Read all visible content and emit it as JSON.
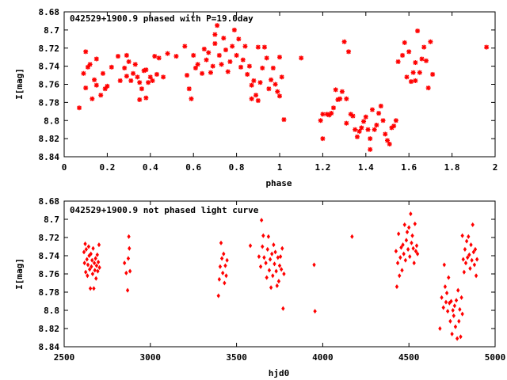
{
  "chart_data": [
    {
      "type": "scatter",
      "title": "042529+1900.9 phased with P=19.0day",
      "xlabel": "phase",
      "ylabel": "I[mag]",
      "xlim": [
        0,
        2
      ],
      "ylim": [
        8.84,
        8.68
      ],
      "y_inverted": true,
      "grid": false,
      "xticks": [
        "0",
        "0.2",
        "0.4",
        "0.6",
        "0.8",
        "1",
        "1.2",
        "1.4",
        "1.6",
        "1.8",
        "2"
      ],
      "yticks": [
        "8.68",
        "8.7",
        "8.72",
        "8.74",
        "8.76",
        "8.78",
        "8.8",
        "8.82",
        "8.84"
      ],
      "marker": "star",
      "color": "#ff0000",
      "points": [
        [
          0.07,
          8.786
        ],
        [
          0.09,
          8.748
        ],
        [
          0.1,
          8.764
        ],
        [
          0.1,
          8.724
        ],
        [
          0.11,
          8.741
        ],
        [
          0.12,
          8.738
        ],
        [
          0.13,
          8.776
        ],
        [
          0.14,
          8.755
        ],
        [
          0.15,
          8.732
        ],
        [
          0.15,
          8.761
        ],
        [
          0.17,
          8.772
        ],
        [
          0.18,
          8.748
        ],
        [
          0.19,
          8.765
        ],
        [
          0.2,
          8.762
        ],
        [
          0.22,
          8.741
        ],
        [
          0.25,
          8.729
        ],
        [
          0.26,
          8.756
        ],
        [
          0.28,
          8.742
        ],
        [
          0.29,
          8.728
        ],
        [
          0.29,
          8.751
        ],
        [
          0.3,
          8.735
        ],
        [
          0.31,
          8.756
        ],
        [
          0.32,
          8.748
        ],
        [
          0.33,
          8.738
        ],
        [
          0.34,
          8.752
        ],
        [
          0.35,
          8.758
        ],
        [
          0.35,
          8.777
        ],
        [
          0.36,
          8.765
        ],
        [
          0.37,
          8.745
        ],
        [
          0.38,
          8.744
        ],
        [
          0.38,
          8.775
        ],
        [
          0.39,
          8.758
        ],
        [
          0.4,
          8.752
        ],
        [
          0.41,
          8.756
        ],
        [
          0.42,
          8.729
        ],
        [
          0.43,
          8.749
        ],
        [
          0.44,
          8.731
        ],
        [
          0.46,
          8.752
        ],
        [
          0.48,
          8.726
        ],
        [
          0.52,
          8.729
        ],
        [
          0.56,
          8.718
        ],
        [
          0.57,
          8.75
        ],
        [
          0.58,
          8.765
        ],
        [
          0.59,
          8.776
        ],
        [
          0.6,
          8.728
        ],
        [
          0.61,
          8.742
        ],
        [
          0.62,
          8.738
        ],
        [
          0.64,
          8.748
        ],
        [
          0.65,
          8.721
        ],
        [
          0.66,
          8.733
        ],
        [
          0.67,
          8.725
        ],
        [
          0.68,
          8.747
        ],
        [
          0.69,
          8.74
        ],
        [
          0.7,
          8.715
        ],
        [
          0.7,
          8.705
        ],
        [
          0.71,
          8.695
        ],
        [
          0.72,
          8.728
        ],
        [
          0.73,
          8.738
        ],
        [
          0.74,
          8.709
        ],
        [
          0.75,
          8.722
        ],
        [
          0.76,
          8.746
        ],
        [
          0.77,
          8.735
        ],
        [
          0.78,
          8.718
        ],
        [
          0.79,
          8.7
        ],
        [
          0.8,
          8.728
        ],
        [
          0.81,
          8.71
        ],
        [
          0.82,
          8.741
        ],
        [
          0.83,
          8.733
        ],
        [
          0.84,
          8.718
        ],
        [
          0.85,
          8.749
        ],
        [
          0.86,
          8.74
        ],
        [
          0.87,
          8.761
        ],
        [
          0.87,
          8.776
        ],
        [
          0.88,
          8.756
        ],
        [
          0.89,
          8.772
        ],
        [
          0.9,
          8.719
        ],
        [
          0.9,
          8.778
        ],
        [
          0.91,
          8.758
        ],
        [
          0.92,
          8.742
        ],
        [
          0.93,
          8.719
        ],
        [
          0.94,
          8.731
        ],
        [
          0.95,
          8.765
        ],
        [
          0.96,
          8.755
        ],
        [
          0.97,
          8.742
        ],
        [
          0.98,
          8.76
        ],
        [
          0.99,
          8.768
        ],
        [
          1.0,
          8.773
        ],
        [
          1.0,
          8.73
        ],
        [
          1.01,
          8.752
        ],
        [
          1.02,
          8.799
        ],
        [
          1.1,
          8.731
        ],
        [
          1.19,
          8.8
        ],
        [
          1.2,
          8.793
        ],
        [
          1.2,
          8.82
        ],
        [
          1.22,
          8.793
        ],
        [
          1.23,
          8.794
        ],
        [
          1.24,
          8.792
        ],
        [
          1.25,
          8.786
        ],
        [
          1.26,
          8.766
        ],
        [
          1.27,
          8.777
        ],
        [
          1.28,
          8.776
        ],
        [
          1.29,
          8.768
        ],
        [
          1.3,
          8.713
        ],
        [
          1.31,
          8.776
        ],
        [
          1.31,
          8.803
        ],
        [
          1.32,
          8.724
        ],
        [
          1.33,
          8.793
        ],
        [
          1.34,
          8.795
        ],
        [
          1.35,
          8.81
        ],
        [
          1.36,
          8.818
        ],
        [
          1.37,
          8.812
        ],
        [
          1.38,
          8.808
        ],
        [
          1.39,
          8.801
        ],
        [
          1.4,
          8.796
        ],
        [
          1.41,
          8.81
        ],
        [
          1.42,
          8.832
        ],
        [
          1.42,
          8.82
        ],
        [
          1.43,
          8.788
        ],
        [
          1.44,
          8.81
        ],
        [
          1.45,
          8.805
        ],
        [
          1.46,
          8.792
        ],
        [
          1.47,
          8.784
        ],
        [
          1.48,
          8.8
        ],
        [
          1.49,
          8.815
        ],
        [
          1.5,
          8.822
        ],
        [
          1.51,
          8.826
        ],
        [
          1.52,
          8.808
        ],
        [
          1.53,
          8.806
        ],
        [
          1.54,
          8.8
        ],
        [
          1.55,
          8.735
        ],
        [
          1.57,
          8.728
        ],
        [
          1.58,
          8.714
        ],
        [
          1.59,
          8.752
        ],
        [
          1.6,
          8.724
        ],
        [
          1.61,
          8.757
        ],
        [
          1.62,
          8.747
        ],
        [
          1.63,
          8.736
        ],
        [
          1.63,
          8.756
        ],
        [
          1.64,
          8.701
        ],
        [
          1.65,
          8.747
        ],
        [
          1.66,
          8.732
        ],
        [
          1.67,
          8.719
        ],
        [
          1.68,
          8.734
        ],
        [
          1.69,
          8.764
        ],
        [
          1.7,
          8.713
        ],
        [
          1.71,
          8.749
        ],
        [
          1.96,
          8.719
        ]
      ]
    },
    {
      "type": "scatter",
      "title": "042529+1900.9 not phased light curve",
      "xlabel": "hjd0",
      "ylabel": "I[mag]",
      "xlim": [
        2500,
        5000
      ],
      "ylim": [
        8.84,
        8.68
      ],
      "y_inverted": true,
      "grid": false,
      "xticks": [
        "2500",
        "3000",
        "3500",
        "4000",
        "4500",
        "5000"
      ],
      "yticks": [
        "8.68",
        "8.7",
        "8.72",
        "8.74",
        "8.76",
        "8.78",
        "8.8",
        "8.82",
        "8.84"
      ],
      "marker": "diamond",
      "color": "#ff0000",
      "points": [
        [
          2615,
          8.736
        ],
        [
          2618,
          8.748
        ],
        [
          2622,
          8.727
        ],
        [
          2625,
          8.758
        ],
        [
          2628,
          8.733
        ],
        [
          2632,
          8.744
        ],
        [
          2635,
          8.762
        ],
        [
          2638,
          8.75
        ],
        [
          2642,
          8.73
        ],
        [
          2645,
          8.74
        ],
        [
          2648,
          8.755
        ],
        [
          2652,
          8.776
        ],
        [
          2655,
          8.738
        ],
        [
          2658,
          8.752
        ],
        [
          2662,
          8.745
        ],
        [
          2665,
          8.76
        ],
        [
          2668,
          8.732
        ],
        [
          2672,
          8.776
        ],
        [
          2675,
          8.748
        ],
        [
          2678,
          8.756
        ],
        [
          2682,
          8.743
        ],
        [
          2685,
          8.765
        ],
        [
          2688,
          8.751
        ],
        [
          2692,
          8.739
        ],
        [
          2695,
          8.757
        ],
        [
          2698,
          8.747
        ],
        [
          2702,
          8.728
        ],
        [
          2705,
          8.753
        ],
        [
          2850,
          8.748
        ],
        [
          2860,
          8.759
        ],
        [
          2868,
          8.778
        ],
        [
          2872,
          8.743
        ],
        [
          2875,
          8.719
        ],
        [
          2878,
          8.732
        ],
        [
          2882,
          8.757
        ],
        [
          3395,
          8.784
        ],
        [
          3400,
          8.766
        ],
        [
          3405,
          8.752
        ],
        [
          3410,
          8.726
        ],
        [
          3415,
          8.743
        ],
        [
          3420,
          8.759
        ],
        [
          3425,
          8.738
        ],
        [
          3430,
          8.77
        ],
        [
          3435,
          8.751
        ],
        [
          3440,
          8.762
        ],
        [
          3445,
          8.745
        ],
        [
          3580,
          8.729
        ],
        [
          3630,
          8.741
        ],
        [
          3640,
          8.752
        ],
        [
          3645,
          8.701
        ],
        [
          3650,
          8.73
        ],
        [
          3655,
          8.718
        ],
        [
          3660,
          8.742
        ],
        [
          3670,
          8.748
        ],
        [
          3675,
          8.764
        ],
        [
          3680,
          8.733
        ],
        [
          3685,
          8.719
        ],
        [
          3690,
          8.756
        ],
        [
          3695,
          8.744
        ],
        [
          3700,
          8.775
        ],
        [
          3705,
          8.738
        ],
        [
          3710,
          8.762
        ],
        [
          3715,
          8.728
        ],
        [
          3720,
          8.749
        ],
        [
          3725,
          8.736
        ],
        [
          3730,
          8.757
        ],
        [
          3735,
          8.773
        ],
        [
          3740,
          8.742
        ],
        [
          3745,
          8.768
        ],
        [
          3750,
          8.751
        ],
        [
          3755,
          8.741
        ],
        [
          3760,
          8.755
        ],
        [
          3765,
          8.732
        ],
        [
          3770,
          8.798
        ],
        [
          3775,
          8.76
        ],
        [
          3950,
          8.75
        ],
        [
          3955,
          8.801
        ],
        [
          4170,
          8.719
        ],
        [
          4425,
          8.735
        ],
        [
          4430,
          8.774
        ],
        [
          4435,
          8.748
        ],
        [
          4440,
          8.716
        ],
        [
          4445,
          8.762
        ],
        [
          4450,
          8.742
        ],
        [
          4455,
          8.731
        ],
        [
          4460,
          8.756
        ],
        [
          4465,
          8.728
        ],
        [
          4470,
          8.738
        ],
        [
          4475,
          8.706
        ],
        [
          4480,
          8.745
        ],
        [
          4485,
          8.723
        ],
        [
          4490,
          8.714
        ],
        [
          4495,
          8.733
        ],
        [
          4500,
          8.709
        ],
        [
          4505,
          8.741
        ],
        [
          4510,
          8.694
        ],
        [
          4515,
          8.726
        ],
        [
          4520,
          8.718
        ],
        [
          4525,
          8.732
        ],
        [
          4530,
          8.748
        ],
        [
          4535,
          8.705
        ],
        [
          4540,
          8.735
        ],
        [
          4545,
          8.729
        ],
        [
          4550,
          8.738
        ],
        [
          4680,
          8.82
        ],
        [
          4690,
          8.786
        ],
        [
          4700,
          8.797
        ],
        [
          4705,
          8.75
        ],
        [
          4710,
          8.774
        ],
        [
          4715,
          8.791
        ],
        [
          4720,
          8.781
        ],
        [
          4725,
          8.801
        ],
        [
          4730,
          8.764
        ],
        [
          4735,
          8.792
        ],
        [
          4740,
          8.812
        ],
        [
          4745,
          8.79
        ],
        [
          4750,
          8.826
        ],
        [
          4755,
          8.8
        ],
        [
          4760,
          8.806
        ],
        [
          4765,
          8.795
        ],
        [
          4770,
          8.818
        ],
        [
          4775,
          8.789
        ],
        [
          4780,
          8.831
        ],
        [
          4785,
          8.778
        ],
        [
          4790,
          8.812
        ],
        [
          4795,
          8.799
        ],
        [
          4800,
          8.829
        ],
        [
          4805,
          8.786
        ],
        [
          4810,
          8.804
        ],
        [
          4810,
          8.718
        ],
        [
          4815,
          8.744
        ],
        [
          4820,
          8.758
        ],
        [
          4825,
          8.733
        ],
        [
          4830,
          8.748
        ],
        [
          4835,
          8.724
        ],
        [
          4840,
          8.742
        ],
        [
          4845,
          8.719
        ],
        [
          4850,
          8.739
        ],
        [
          4855,
          8.754
        ],
        [
          4860,
          8.728
        ],
        [
          4865,
          8.745
        ],
        [
          4870,
          8.706
        ],
        [
          4875,
          8.736
        ],
        [
          4880,
          8.75
        ],
        [
          4885,
          8.733
        ],
        [
          4890,
          8.762
        ],
        [
          4895,
          8.744
        ]
      ]
    }
  ]
}
